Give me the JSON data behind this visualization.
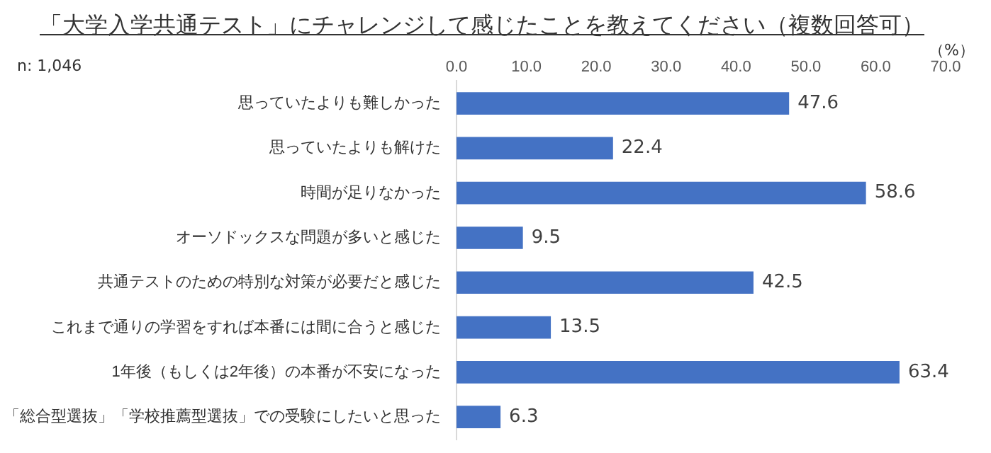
{
  "chart_data": {
    "type": "bar",
    "orientation": "horizontal",
    "title": "「大学入学共通テスト」にチャレンジして感じたことを教えてください（複数回答可）",
    "annotations": [
      "n: 1,046",
      "（%）"
    ],
    "categories": [
      "思っていたよりも難しかった",
      "思っていたよりも解けた",
      "時間が足りなかった",
      "オーソドックスな問題が多いと感じた",
      "共通テストのための特別な対策が必要だと感じた",
      "これまで通りの学習をすれば本番には間に合うと感じた",
      "1年後（もしくは2年後）の本番が不安になった",
      "「総合型選抜」「学校推薦型選抜」での受験にしたいと思った"
    ],
    "values": [
      47.6,
      22.4,
      58.6,
      9.5,
      42.5,
      13.5,
      63.4,
      6.3
    ],
    "color": "#4472c4",
    "xlim": [
      0,
      70
    ],
    "xticks": [
      {
        "value": 0,
        "label": "0.0"
      },
      {
        "value": 10,
        "label": "10.0"
      },
      {
        "value": 20,
        "label": "20.0"
      },
      {
        "value": 30,
        "label": "30.0"
      },
      {
        "value": 40,
        "label": "40.0"
      },
      {
        "value": 50,
        "label": "50.0"
      },
      {
        "value": 60,
        "label": "60.0"
      },
      {
        "value": 70,
        "label": "70.0"
      }
    ],
    "grid": false,
    "legend": false,
    "data_labels": true
  }
}
